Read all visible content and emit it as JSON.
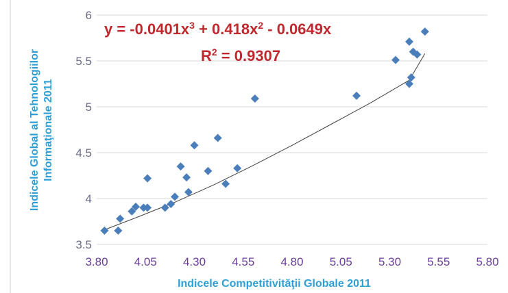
{
  "chart_data": {
    "type": "scatter",
    "xlabel": "Indicele Competitivităţii Globale 2011",
    "ylabel_line1": "Indicele Global al Tehnologiilor",
    "ylabel_line2": "Informaţionale 2011",
    "xlim": [
      3.8,
      5.8
    ],
    "ylim": [
      3.5,
      6
    ],
    "x_ticks": [
      "3.80",
      "4.05",
      "4.30",
      "4.55",
      "4.80",
      "5.05",
      "5.30",
      "5.55",
      "5.80"
    ],
    "y_ticks": [
      "3.5",
      "4",
      "4.5",
      "5",
      "5.5",
      "6"
    ],
    "grid": "horizontal",
    "marker_color": "#4a7ebb",
    "trendline_color": "#404040",
    "equation_color": "#c0282e",
    "trendline": {
      "type": "polynomial-3",
      "equation_prefix": "y = -0.0401x",
      "equation_mid": " + 0.418x",
      "equation_suffix": " - 0.0649x",
      "r2_prefix": "R",
      "r2_suffix": " = 0.9307",
      "x_range": [
        3.84,
        5.48
      ],
      "points": [
        [
          3.84,
          3.66
        ],
        [
          4.0,
          3.79
        ],
        [
          4.2,
          3.96
        ],
        [
          4.4,
          4.15
        ],
        [
          4.6,
          4.36
        ],
        [
          4.8,
          4.58
        ],
        [
          5.0,
          4.81
        ],
        [
          5.2,
          5.04
        ],
        [
          5.4,
          5.29
        ],
        [
          5.48,
          5.58
        ]
      ]
    },
    "points": [
      [
        3.84,
        3.65
      ],
      [
        3.91,
        3.65
      ],
      [
        3.92,
        3.78
      ],
      [
        3.98,
        3.86
      ],
      [
        4.0,
        3.91
      ],
      [
        4.04,
        3.9
      ],
      [
        4.06,
        3.9
      ],
      [
        4.06,
        4.22
      ],
      [
        4.15,
        3.9
      ],
      [
        4.18,
        3.94
      ],
      [
        4.2,
        4.02
      ],
      [
        4.23,
        4.35
      ],
      [
        4.26,
        4.23
      ],
      [
        4.27,
        4.07
      ],
      [
        4.3,
        4.58
      ],
      [
        4.37,
        4.3
      ],
      [
        4.42,
        4.66
      ],
      [
        4.46,
        4.16
      ],
      [
        4.52,
        4.33
      ],
      [
        4.61,
        5.09
      ],
      [
        5.13,
        5.12
      ],
      [
        5.33,
        5.51
      ],
      [
        5.4,
        5.71
      ],
      [
        5.4,
        5.25
      ],
      [
        5.41,
        5.32
      ],
      [
        5.42,
        5.6
      ],
      [
        5.44,
        5.57
      ],
      [
        5.48,
        5.82
      ]
    ]
  }
}
